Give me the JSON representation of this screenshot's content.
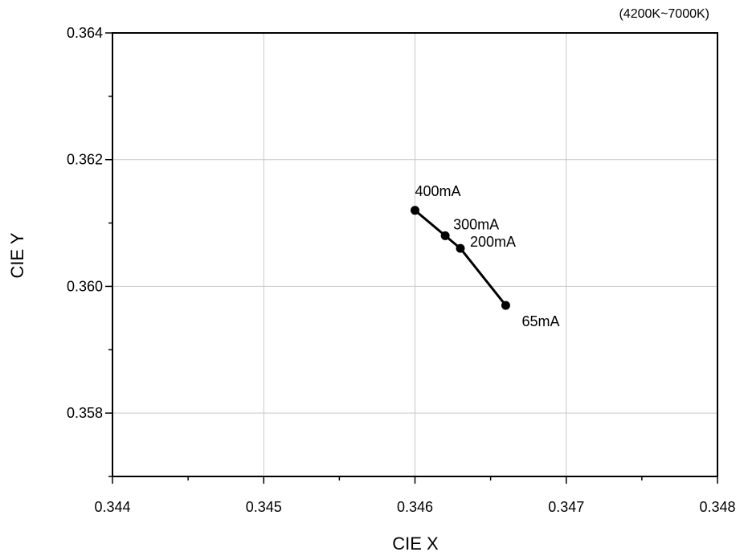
{
  "chart_data": {
    "type": "line",
    "title": "",
    "note": "(4200K~7000K)",
    "xlabel": "CIE X",
    "ylabel": "CIE Y",
    "xlim": [
      0.344,
      0.348
    ],
    "ylim": [
      0.357,
      0.364
    ],
    "x_ticks": [
      0.344,
      0.345,
      0.346,
      0.347,
      0.348
    ],
    "x_tick_labels": [
      "0.344",
      "0.345",
      "0.346",
      "0.347",
      "0.348"
    ],
    "y_ticks": [
      0.358,
      0.36,
      0.362,
      0.364
    ],
    "y_tick_labels": [
      "0.358",
      "0.360",
      "0.362",
      "0.364"
    ],
    "grid": true,
    "series": [
      {
        "points": [
          {
            "x": 0.346,
            "y": 0.3612,
            "label": "400mA"
          },
          {
            "x": 0.3462,
            "y": 0.3608,
            "label": "300mA"
          },
          {
            "x": 0.3463,
            "y": 0.3606,
            "label": "200mA"
          },
          {
            "x": 0.3466,
            "y": 0.3597,
            "label": "65mA"
          }
        ]
      }
    ]
  }
}
